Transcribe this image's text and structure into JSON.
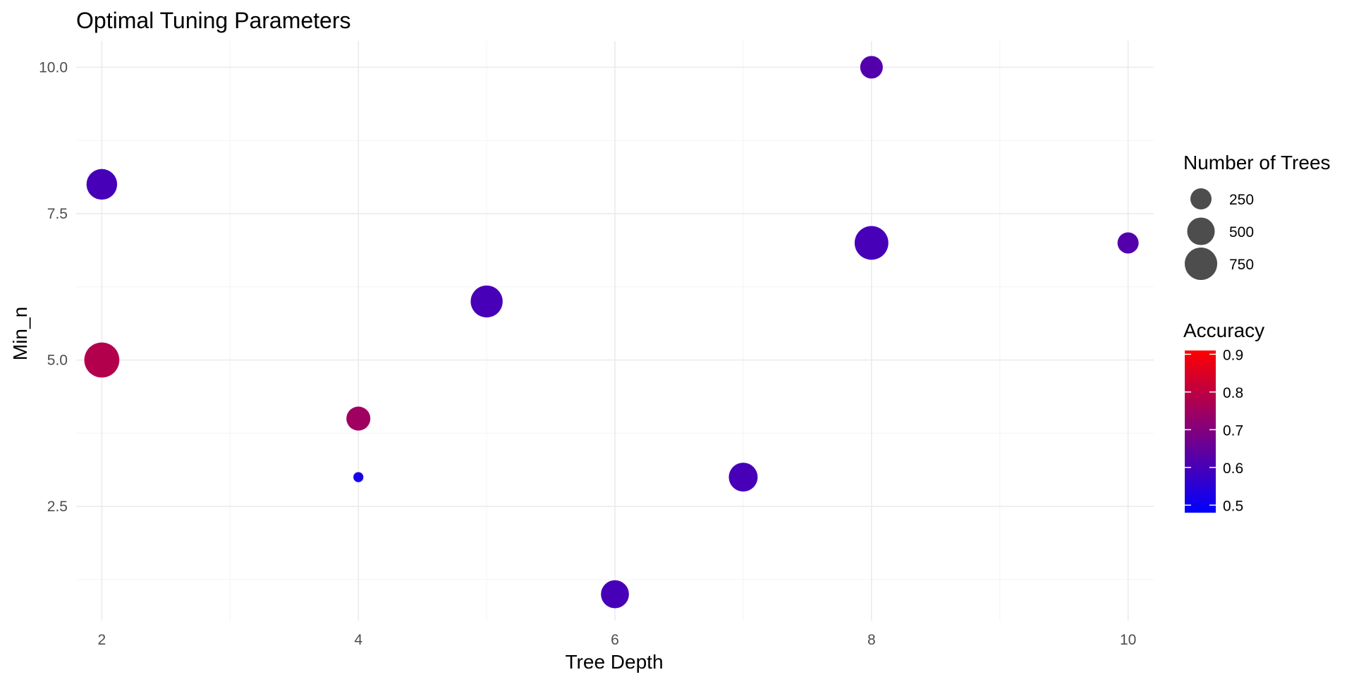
{
  "chart_data": {
    "type": "scatter",
    "title": "Optimal Tuning Parameters",
    "xlabel": "Tree Depth",
    "ylabel": "Min_n",
    "xlim": [
      1.8,
      10.2
    ],
    "ylim": [
      0.55,
      10.45
    ],
    "x_ticks": [
      2,
      4,
      6,
      8,
      10
    ],
    "x_tick_labels": [
      "2",
      "4",
      "6",
      "8",
      "10"
    ],
    "y_ticks": [
      2.5,
      5.0,
      7.5,
      10.0
    ],
    "y_tick_labels": [
      "2.5",
      "5.0",
      "7.5",
      "10.0"
    ],
    "grid": true,
    "points": [
      {
        "x": 2,
        "y": 8,
        "trees": 650,
        "accuracy": 0.6
      },
      {
        "x": 2,
        "y": 5,
        "trees": 900,
        "accuracy": 0.78
      },
      {
        "x": 4,
        "y": 4,
        "trees": 350,
        "accuracy": 0.75
      },
      {
        "x": 4,
        "y": 3,
        "trees": 20,
        "accuracy": 0.52
      },
      {
        "x": 5,
        "y": 6,
        "trees": 720,
        "accuracy": 0.6
      },
      {
        "x": 6,
        "y": 1,
        "trees": 520,
        "accuracy": 0.6
      },
      {
        "x": 7,
        "y": 3,
        "trees": 560,
        "accuracy": 0.6
      },
      {
        "x": 8,
        "y": 10,
        "trees": 300,
        "accuracy": 0.62
      },
      {
        "x": 8,
        "y": 7,
        "trees": 820,
        "accuracy": 0.6
      },
      {
        "x": 10,
        "y": 7,
        "trees": 250,
        "accuracy": 0.62
      }
    ],
    "size_legend": {
      "title": "Number of Trees",
      "values": [
        250,
        500,
        750
      ],
      "labels": [
        "250",
        "500",
        "750"
      ],
      "placement": "right"
    },
    "color_legend": {
      "title": "Accuracy",
      "range": [
        0.48,
        0.91
      ],
      "ticks": [
        0.5,
        0.6,
        0.7,
        0.8,
        0.9
      ],
      "tick_labels": [
        "0.5",
        "0.6",
        "0.7",
        "0.8",
        "0.9"
      ],
      "low_color": "#0000ff",
      "high_color": "#ff0000",
      "placement": "right"
    },
    "legend_point_color": "#4d4d4d"
  }
}
